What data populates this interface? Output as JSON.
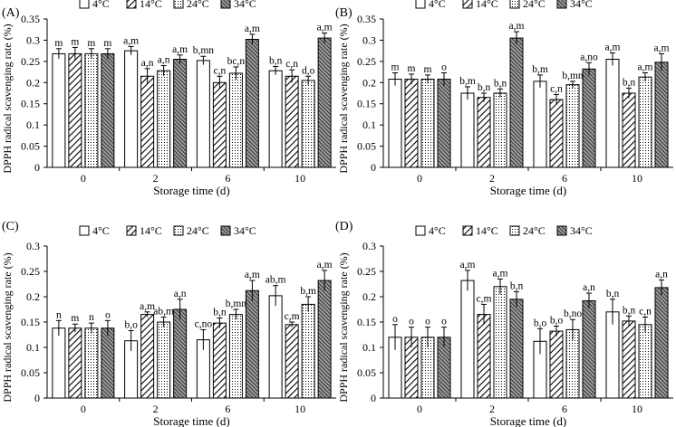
{
  "colors": {
    "axis": "#000000",
    "bar_edge": "#000000",
    "bar_fill": "#ffffff",
    "hatch": "#000000",
    "grid": "none"
  },
  "chart_data": [
    {
      "type": "bar",
      "panel_label": "(A)",
      "categories": [
        "0",
        "2",
        "6",
        "10"
      ],
      "xlabel": "Storage time (d)",
      "ylabel": "DPPH radical scavenging rate (%)",
      "ylim": [
        0,
        0.35
      ],
      "yticks": [
        "0",
        "0.05",
        "0.1",
        "0.15",
        "0.2",
        "0.25",
        "0.3",
        "0.35"
      ],
      "legend_position": "top",
      "series": [
        {
          "name": "4°C",
          "pattern": "blank",
          "values": [
            0.268,
            0.275,
            0.252,
            0.228
          ],
          "errors": [
            0.012,
            0.01,
            0.01,
            0.01
          ],
          "labels": [
            "m",
            "a,m",
            "b,mn",
            "b,n"
          ]
        },
        {
          "name": "14°C",
          "pattern": "diagonal",
          "values": [
            0.268,
            0.215,
            0.2,
            0.215
          ],
          "errors": [
            0.015,
            0.018,
            0.015,
            0.015
          ],
          "labels": [
            "m",
            "a,n",
            "c,n",
            "c,n"
          ]
        },
        {
          "name": "24°C",
          "pattern": "dotted",
          "values": [
            0.268,
            0.228,
            0.222,
            0.205
          ],
          "errors": [
            0.012,
            0.012,
            0.015,
            0.01
          ],
          "labels": [
            "m",
            "a,n",
            "bc,n",
            "d,o"
          ]
        },
        {
          "name": "34°C",
          "pattern": "dense-diagonal",
          "values": [
            0.268,
            0.255,
            0.302,
            0.305
          ],
          "errors": [
            0.012,
            0.01,
            0.012,
            0.012
          ],
          "labels": [
            "m",
            "a,m",
            "a,m",
            "a,m"
          ]
        }
      ]
    },
    {
      "type": "bar",
      "panel_label": "(B)",
      "categories": [
        "0",
        "2",
        "6",
        "10"
      ],
      "xlabel": "Storage time (d)",
      "ylabel": "DPPH radical scavenging rate (%)",
      "ylim": [
        0,
        0.35
      ],
      "yticks": [
        "0",
        "0.05",
        "0.1",
        "0.15",
        "0.2",
        "0.25",
        "0.3",
        "0.35"
      ],
      "legend_position": "top",
      "series": [
        {
          "name": "4°C",
          "pattern": "blank",
          "values": [
            0.208,
            0.175,
            0.203,
            0.255
          ],
          "errors": [
            0.015,
            0.015,
            0.015,
            0.015
          ],
          "labels": [
            "m",
            "b,m",
            "b,m",
            "a,m"
          ]
        },
        {
          "name": "14°C",
          "pattern": "diagonal",
          "values": [
            0.208,
            0.165,
            0.16,
            0.175
          ],
          "errors": [
            0.012,
            0.01,
            0.012,
            0.012
          ],
          "labels": [
            "m",
            "b,n",
            "c,n",
            "b,n"
          ]
        },
        {
          "name": "24°C",
          "pattern": "dotted",
          "values": [
            0.208,
            0.175,
            0.195,
            0.213
          ],
          "errors": [
            0.01,
            0.01,
            0.008,
            0.01
          ],
          "labels": [
            "m",
            "b,n",
            "b,mn",
            "a,m"
          ]
        },
        {
          "name": "34°C",
          "pattern": "dense-diagonal",
          "values": [
            0.208,
            0.305,
            0.232,
            0.248
          ],
          "errors": [
            0.015,
            0.015,
            0.015,
            0.02
          ],
          "labels": [
            "o",
            "a,m",
            "a,no",
            "a,m"
          ]
        }
      ]
    },
    {
      "type": "bar",
      "panel_label": "(C)",
      "categories": [
        "0",
        "2",
        "6",
        "10"
      ],
      "xlabel": "Storage time (d)",
      "ylabel": "DPPH radical scavenging rate (%)",
      "ylim": [
        0,
        0.3
      ],
      "yticks": [
        "0",
        "0.05",
        "0.1",
        "0.15",
        "0.2",
        "0.25",
        "0.3"
      ],
      "legend_position": "top",
      "series": [
        {
          "name": "4°C",
          "pattern": "blank",
          "values": [
            0.138,
            0.113,
            0.115,
            0.202
          ],
          "errors": [
            0.015,
            0.02,
            0.02,
            0.02
          ],
          "labels": [
            "n",
            "b,o",
            "c,no",
            "ab,m"
          ]
        },
        {
          "name": "14°C",
          "pattern": "diagonal",
          "values": [
            0.138,
            0.165,
            0.148,
            0.145
          ],
          "errors": [
            0.008,
            0.005,
            0.01,
            0.005
          ],
          "labels": [
            "m",
            "a,m",
            "b,n",
            "c,m"
          ]
        },
        {
          "name": "24°C",
          "pattern": "dotted",
          "values": [
            0.138,
            0.15,
            0.165,
            0.185
          ],
          "errors": [
            0.01,
            0.01,
            0.01,
            0.015
          ],
          "labels": [
            "n",
            "ab,m",
            "b,mn",
            "b,m"
          ]
        },
        {
          "name": "34°C",
          "pattern": "dense-diagonal",
          "values": [
            0.138,
            0.175,
            0.212,
            0.232
          ],
          "errors": [
            0.015,
            0.02,
            0.02,
            0.02
          ],
          "labels": [
            "o",
            "a,n",
            "a,m",
            "a,m"
          ]
        }
      ]
    },
    {
      "type": "bar",
      "panel_label": "(D)",
      "categories": [
        "0",
        "2",
        "6",
        "10"
      ],
      "xlabel": "Storage time (d)",
      "ylabel": "DPPH radical scavenging rate (%)",
      "ylim": [
        0,
        0.3
      ],
      "yticks": [
        "0",
        "0.05",
        "0.1",
        "0.15",
        "0.2",
        "0.25",
        "0.3"
      ],
      "legend_position": "top",
      "series": [
        {
          "name": "4°C",
          "pattern": "blank",
          "values": [
            0.12,
            0.232,
            0.112,
            0.17
          ],
          "errors": [
            0.025,
            0.02,
            0.025,
            0.025
          ],
          "labels": [
            "o",
            "a,m",
            "b,o",
            "b,n"
          ]
        },
        {
          "name": "14°C",
          "pattern": "diagonal",
          "values": [
            0.12,
            0.165,
            0.132,
            0.152
          ],
          "errors": [
            0.02,
            0.02,
            0.01,
            0.01
          ],
          "labels": [
            "o",
            "c,m",
            "b,o",
            "b,n"
          ]
        },
        {
          "name": "24°C",
          "pattern": "dotted",
          "values": [
            0.12,
            0.22,
            0.135,
            0.145
          ],
          "errors": [
            0.02,
            0.015,
            0.02,
            0.015
          ],
          "labels": [
            "o",
            "a,m",
            "b,no",
            "c,n"
          ]
        },
        {
          "name": "34°C",
          "pattern": "dense-diagonal",
          "values": [
            0.12,
            0.195,
            0.192,
            0.218
          ],
          "errors": [
            0.02,
            0.015,
            0.015,
            0.015
          ],
          "labels": [
            "o",
            "b,n",
            "a,n",
            "a,n"
          ]
        }
      ]
    }
  ]
}
